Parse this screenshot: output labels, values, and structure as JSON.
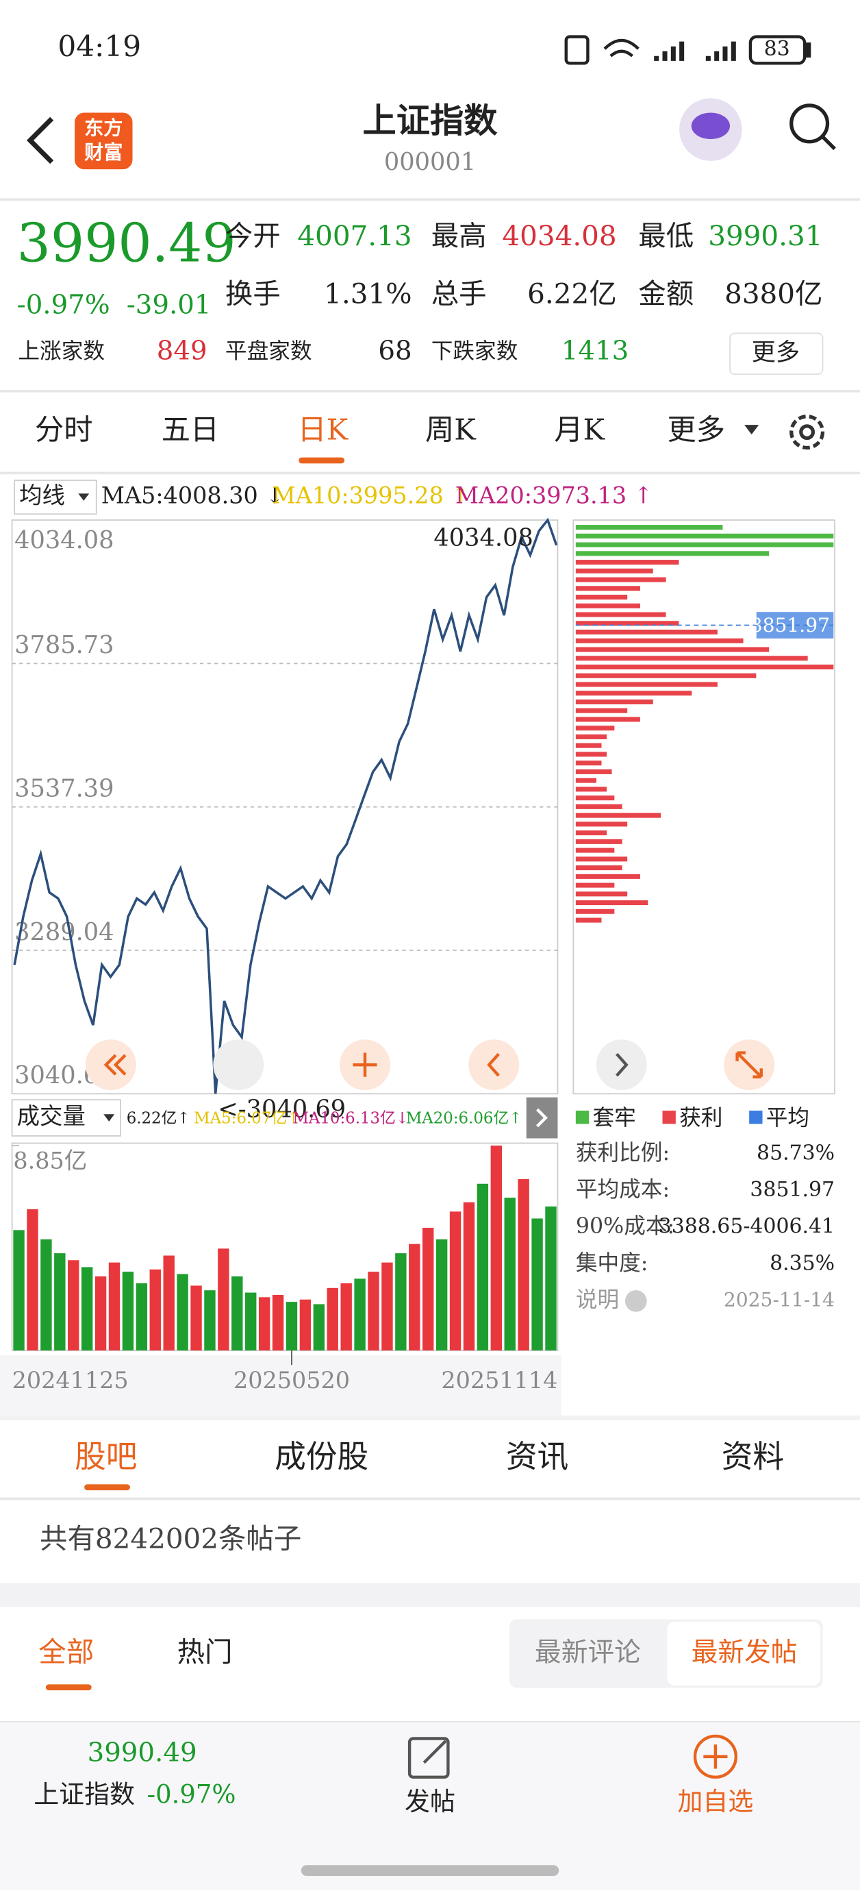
{
  "status": {
    "time": "04:19",
    "battery": "83"
  },
  "header": {
    "logo": [
      "东方",
      "财富"
    ],
    "title": "上证指数",
    "code": "000001"
  },
  "quote": {
    "price": "3990.49",
    "change_pct": "-0.97%",
    "change": "-39.01",
    "fields": [
      {
        "label": "今开",
        "value": "4007.13"
      },
      {
        "label": "最高",
        "value": "4034.08"
      },
      {
        "label": "最低",
        "value": "3990.31"
      },
      {
        "label": "换手",
        "value": "1.31%"
      },
      {
        "label": "总手",
        "value": "6.22亿"
      },
      {
        "label": "金额",
        "value": "8380亿"
      }
    ],
    "breadth": [
      {
        "label": "上涨家数",
        "value": "849"
      },
      {
        "label": "平盘家数",
        "value": "68"
      },
      {
        "label": "下跌家数",
        "value": "1413"
      }
    ],
    "more": "更多"
  },
  "tabs": [
    "分时",
    "五日",
    "日K",
    "周K",
    "月K",
    "更多"
  ],
  "ma_legend": {
    "label": "均线",
    "items": [
      {
        "text": "MA5:4008.30 ↓",
        "color": "#222222"
      },
      {
        "text": "MA10:3995.28 ↑",
        "color": "#e6c200"
      },
      {
        "text": "MA20:3973.13 ↑",
        "color": "#c0207f"
      }
    ]
  },
  "chart_data": [
    {
      "type": "line",
      "color": "#2c4f7c",
      "values": [
        3264.0,
        3347.5,
        3410.1,
        3456.0,
        3389.2,
        3378.8,
        3347.5,
        3264.0,
        3201.4,
        3159.7,
        3264.0,
        3243.1,
        3264.0,
        3347.5,
        3378.8,
        3368.4,
        3389.2,
        3357.9,
        3399.7,
        3431.0,
        3378.8,
        3347.5,
        3326.6,
        3040.69,
        3201.4,
        3159.7,
        3138.8,
        3264.0,
        3337.1,
        3399.7,
        3389.2,
        3378.8,
        3389.2,
        3399.7,
        3378.8,
        3410.1,
        3389.2,
        3451.8,
        3472.7,
        3514.4,
        3556.2,
        3597.9,
        3618.8,
        3587.5,
        3650.1,
        3681.4,
        3744.0,
        3806.6,
        3879.7,
        3827.5,
        3869.2,
        3806.6,
        3869.2,
        3827.5,
        3900.5,
        3921.4,
        3869.2,
        3952.7,
        4004.9,
        3973.6,
        4015.3,
        4034.08,
        3990.49
      ],
      "ylim": [
        3040.69,
        4034.08
      ],
      "yticks": [
        3040.69,
        3289.04,
        3537.39,
        3785.73,
        4034.08
      ],
      "grid": true,
      "annotations": [
        "4034.08",
        "<-3040.69"
      ]
    },
    {
      "type": "bar",
      "title": "成交量",
      "categories": [
        "20241125",
        null,
        null,
        null,
        null,
        null,
        null,
        null,
        null,
        null,
        null,
        null,
        null,
        null,
        null,
        null,
        null,
        null,
        null,
        null,
        "20250520",
        null,
        null,
        null,
        null,
        null,
        null,
        null,
        null,
        null,
        null,
        null,
        null,
        null,
        null,
        null,
        null,
        null,
        null,
        "20251114"
      ],
      "values": [
        5.2,
        6.1,
        4.8,
        4.2,
        3.9,
        3.6,
        3.2,
        3.8,
        3.4,
        2.9,
        3.5,
        4.1,
        3.3,
        2.8,
        2.6,
        4.4,
        3.2,
        2.5,
        2.3,
        2.4,
        2.1,
        2.2,
        2.0,
        2.7,
        2.9,
        3.1,
        3.4,
        3.8,
        4.2,
        4.6,
        5.3,
        4.8,
        6.0,
        6.4,
        7.2,
        8.85,
        6.6,
        7.4,
        5.7,
        6.22
      ],
      "colors": [
        "#1f9e30",
        "#e8383d",
        "#1f9e30",
        "#1f9e30",
        "#e8383d",
        "#1f9e30",
        "#e8383d",
        "#e8383d",
        "#1f9e30",
        "#1f9e30",
        "#e8383d",
        "#e8383d",
        "#1f9e30",
        "#e8383d",
        "#1f9e30",
        "#e8383d",
        "#1f9e30",
        "#1f9e30",
        "#e8383d",
        "#e8383d",
        "#1f9e30",
        "#e8383d",
        "#1f9e30",
        "#e8383d",
        "#e8383d",
        "#1f9e30",
        "#e8383d",
        "#e8383d",
        "#1f9e30",
        "#e8383d",
        "#e8383d",
        "#1f9e30",
        "#e8383d",
        "#e8383d",
        "#1f9e30",
        "#e8383d",
        "#1f9e30",
        "#e8383d",
        "#1f9e30",
        "#1f9e30"
      ],
      "ylim": [
        0,
        8.85
      ],
      "yticks": [
        {
          "value": 8.85,
          "label": "8.85亿"
        }
      ],
      "legend": [
        {
          "text": "6.22亿↑",
          "color": "#222222"
        },
        {
          "text": "MA5:6.07亿↑",
          "color": "#e6c200"
        },
        {
          "text": "MA10:6.13亿↓",
          "color": "#c0207f"
        },
        {
          "text": "MA20:6.06亿↑",
          "color": "#1f9e30"
        }
      ]
    },
    {
      "type": "hbar",
      "xlim": [
        0,
        100
      ],
      "series": [
        {
          "name": "套牢",
          "color": "#4cb944",
          "values": [
            57,
            100,
            100,
            75,
            null,
            null,
            null,
            null,
            null,
            null,
            null,
            null,
            null,
            null,
            null,
            null,
            null,
            null,
            null,
            null,
            null,
            null,
            null,
            null,
            null,
            null,
            null,
            null,
            null,
            null,
            null,
            null,
            null,
            null,
            null,
            null,
            null,
            null,
            null,
            null,
            null,
            null,
            null,
            null,
            null,
            null
          ]
        },
        {
          "name": "获利",
          "color": "#e8434a",
          "values": [
            null,
            null,
            null,
            null,
            40,
            30,
            35,
            25,
            20,
            25,
            35,
            40,
            55,
            65,
            75,
            90,
            100,
            70,
            55,
            45,
            30,
            20,
            25,
            15,
            12,
            10,
            12,
            10,
            14,
            8,
            12,
            15,
            18,
            33,
            20,
            12,
            18,
            15,
            20,
            18,
            25,
            15,
            20,
            28,
            15,
            10
          ]
        }
      ],
      "average": {
        "name": "平均",
        "color": "#3b7de0",
        "value": 3851.97
      },
      "stats": [
        {
          "label": "获利比例:",
          "value": "85.73%"
        },
        {
          "label": "平均成本:",
          "value": "3851.97"
        },
        {
          "label": "90%成本:",
          "value": "3388.65-4006.41"
        },
        {
          "label": "集中度:",
          "value": "8.35%"
        }
      ],
      "note": "说明",
      "date": "2025-11-14"
    }
  ],
  "community": {
    "tabs": [
      "股吧",
      "成份股",
      "资讯",
      "资料"
    ],
    "count": "共有8242002条帖子",
    "filters": [
      "全部",
      "热门"
    ],
    "sort": [
      "最新评论",
      "最新发帖"
    ]
  },
  "bottom_bar": {
    "price": "3990.49",
    "name": "上证指数",
    "change_pct": "-0.97%",
    "post": "发帖",
    "add": "加自选"
  }
}
